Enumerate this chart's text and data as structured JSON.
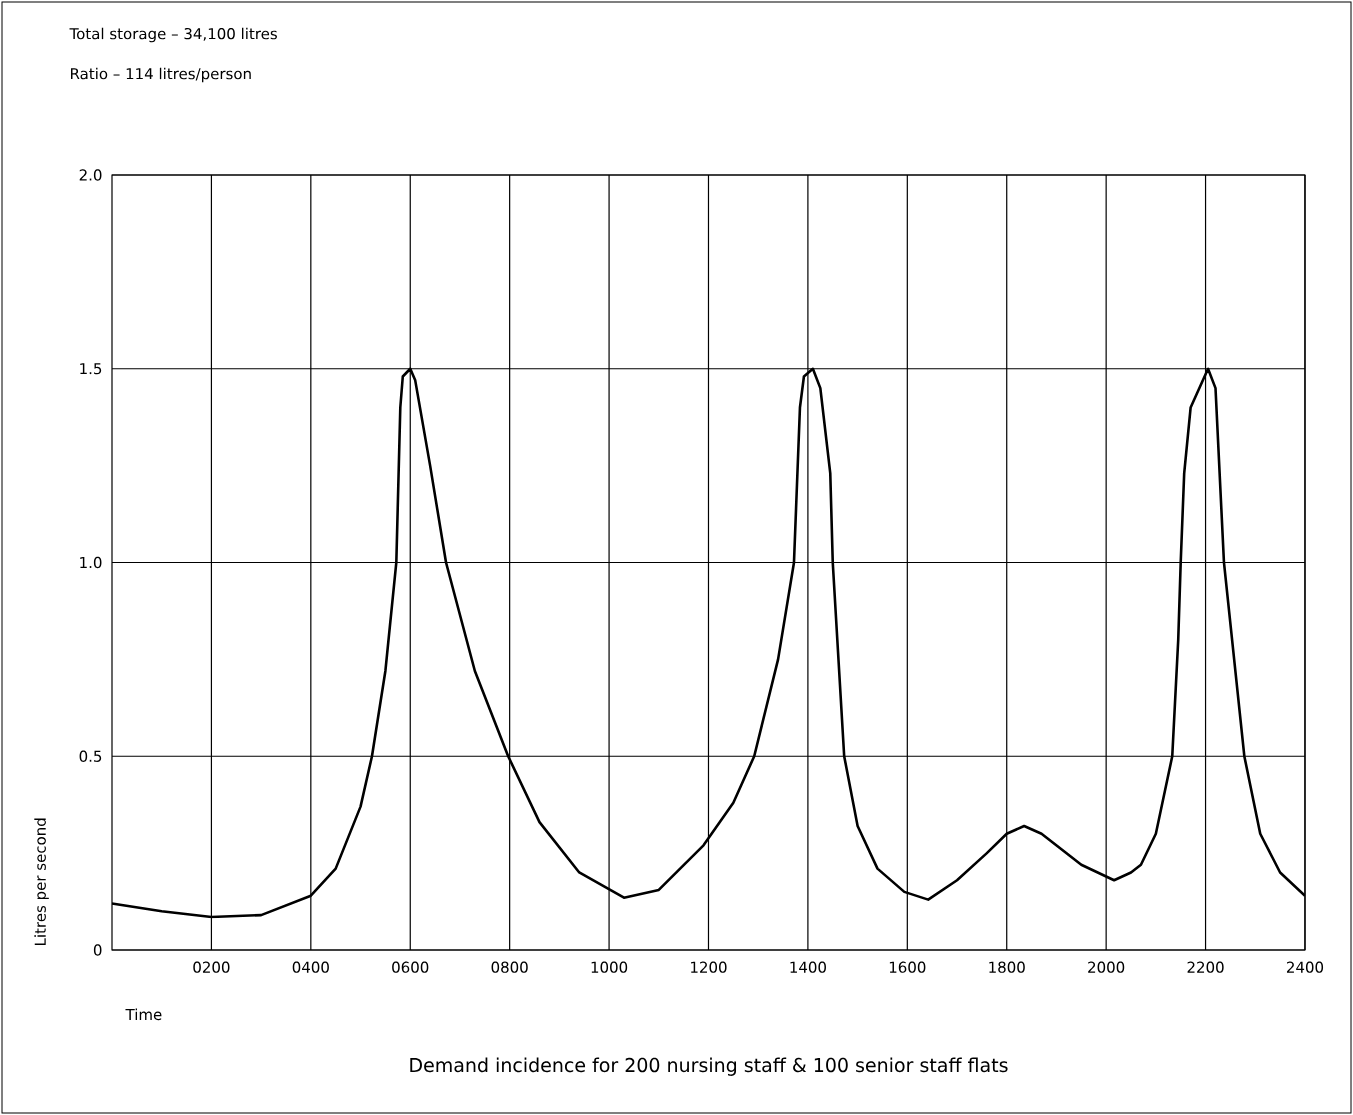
{
  "chart_data": {
    "type": "line",
    "title": "Demand incidence for 200 nursing staff & 100 senior staff flats",
    "annotations": [
      "Total storage – 34,100 litres",
      "Ratio – 114 litres/person"
    ],
    "xlabel": "Time",
    "ylabel": "Litres per second",
    "x": [
      0,
      100,
      200,
      300,
      400,
      450,
      500,
      523,
      550,
      572,
      580,
      585,
      600,
      610,
      640,
      672,
      730,
      797,
      860,
      940,
      1030,
      1100,
      1190,
      1250,
      1292,
      1340,
      1372,
      1384,
      1392,
      1410,
      1425,
      1445,
      1450,
      1473,
      1500,
      1540,
      1594,
      1642,
      1700,
      1760,
      1800,
      1835,
      1870,
      1950,
      2016,
      2050,
      2070,
      2100,
      2133,
      2145,
      2150,
      2157,
      2170,
      2205,
      2220,
      2237,
      2278,
      2310,
      2350,
      2400
    ],
    "series": [
      {
        "color": "#000000",
        "values": [
          0.12,
          0.1,
          0.085,
          0.09,
          0.14,
          0.21,
          0.37,
          0.5,
          0.72,
          1.0,
          1.4,
          1.48,
          1.5,
          1.47,
          1.25,
          1.0,
          0.72,
          0.5,
          0.33,
          0.2,
          0.135,
          0.155,
          0.27,
          0.38,
          0.5,
          0.75,
          1.0,
          1.4,
          1.48,
          1.5,
          1.45,
          1.23,
          1.0,
          0.5,
          0.32,
          0.21,
          0.15,
          0.13,
          0.18,
          0.25,
          0.3,
          0.32,
          0.3,
          0.22,
          0.18,
          0.2,
          0.22,
          0.3,
          0.5,
          0.8,
          1.0,
          1.23,
          1.4,
          1.5,
          1.45,
          1.0,
          0.5,
          0.3,
          0.2,
          0.14
        ]
      }
    ],
    "xlim": [
      0,
      2400
    ],
    "xticks": [
      {
        "value": 200,
        "label": "0200"
      },
      {
        "value": 400,
        "label": "0400"
      },
      {
        "value": 600,
        "label": "0600"
      },
      {
        "value": 800,
        "label": "0800"
      },
      1000,
      1200,
      1400,
      1600,
      1800,
      2000,
      2200,
      2400
    ],
    "ylim": [
      0,
      2
    ],
    "yticks": [
      0,
      0.5,
      {
        "value": 1,
        "label": "1.0"
      },
      1.5,
      {
        "value": 2,
        "label": "2.0"
      }
    ],
    "grid": true,
    "legend": false,
    "marker": "none",
    "line_style": "solid"
  }
}
